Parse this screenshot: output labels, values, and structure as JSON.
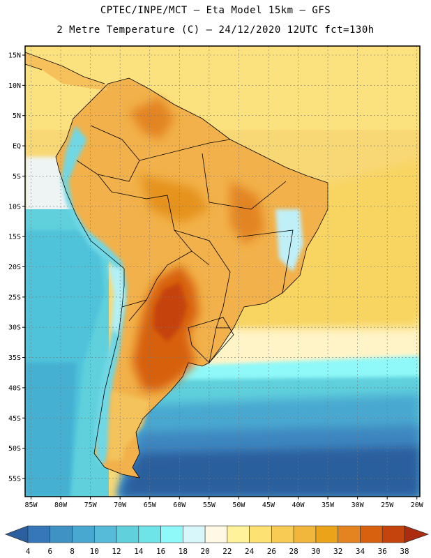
{
  "header": {
    "line1": "CPTEC/INPE/MCT –  Eta Model 15km – GFS",
    "line2": "2 Metre Temperature (C) – 24/12/2020 12UTC fct=130h"
  },
  "map": {
    "lat_labels": [
      "15N",
      "10N",
      "5N",
      "EQ",
      "5S",
      "10S",
      "15S",
      "20S",
      "25S",
      "30S",
      "35S",
      "40S",
      "45S",
      "50S",
      "55S"
    ],
    "lat_values": [
      15,
      10,
      5,
      0,
      -5,
      -10,
      -15,
      -20,
      -25,
      -30,
      -35,
      -40,
      -45,
      -50,
      -55
    ],
    "lon_labels": [
      "85W",
      "80W",
      "75W",
      "70W",
      "65W",
      "60W",
      "55W",
      "50W",
      "45W",
      "40W",
      "35W",
      "30W",
      "25W",
      "20W"
    ],
    "lon_values": [
      -85,
      -80,
      -75,
      -70,
      -65,
      -60,
      -55,
      -50,
      -45,
      -40,
      -35,
      -30,
      -25,
      -20
    ],
    "lat_range": [
      -58,
      16.5
    ],
    "lon_range": [
      -86,
      -19.5
    ]
  },
  "colorbar": {
    "labels": [
      "4",
      "6",
      "8",
      "10",
      "12",
      "14",
      "16",
      "18",
      "20",
      "22",
      "24",
      "26",
      "28",
      "30",
      "32",
      "34",
      "36",
      "38"
    ],
    "colors": [
      "#2c5f9e",
      "#3577b8",
      "#3e92c4",
      "#49a8d0",
      "#56bbd8",
      "#5fd0dc",
      "#6ee4e8",
      "#8ff8f8",
      "#d8f7fb",
      "#fff8e4",
      "#fff29a",
      "#fde273",
      "#f8cb55",
      "#f1b63c",
      "#eba31a",
      "#e38421",
      "#d7610e",
      "#c5430c",
      "#ab2c0e"
    ]
  }
}
